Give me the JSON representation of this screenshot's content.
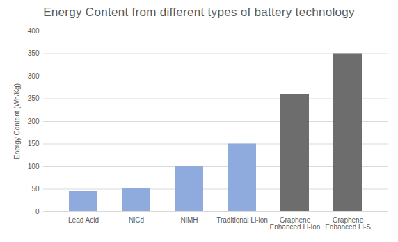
{
  "chart_data": {
    "type": "bar",
    "title": "Energy Content from different types of battery technology",
    "y_label": "Energy Content (Wh/Kg)",
    "categories": [
      "Lead Acid",
      "NiCd",
      "NiMH",
      "Traditional Li-ion",
      "Graphene Enhanced Li-Ion",
      "Graphene Enhanced Li-S"
    ],
    "values": [
      45,
      52,
      100,
      150,
      260,
      350
    ],
    "colors": [
      "#8faadc",
      "#8faadc",
      "#8faadc",
      "#8faadc",
      "#6d6d6d",
      "#6d6d6d"
    ],
    "ylim": [
      0,
      400
    ],
    "yticks": [
      0,
      50,
      100,
      150,
      200,
      250,
      300,
      350,
      400
    ],
    "grid": true
  }
}
